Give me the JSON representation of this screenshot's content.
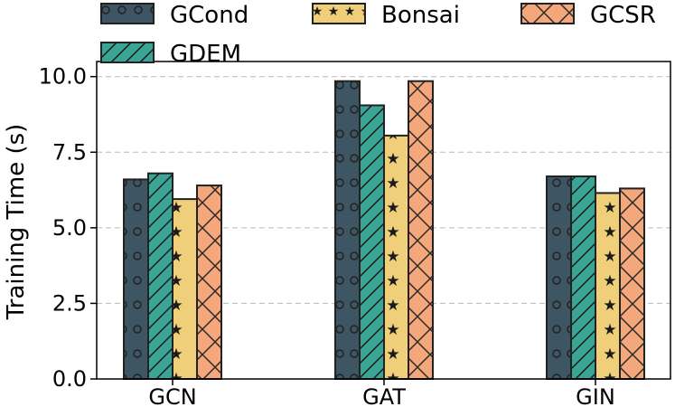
{
  "chart_data": {
    "type": "bar",
    "categories": [
      "GCN",
      "GAT",
      "GIN"
    ],
    "series": [
      {
        "name": "GCond",
        "values": [
          6.6,
          9.85,
          6.7
        ],
        "color": "#3e5663",
        "pattern": "circles"
      },
      {
        "name": "GDEM",
        "values": [
          6.8,
          9.05,
          6.7
        ],
        "color": "#3aa595",
        "pattern": "diagonal"
      },
      {
        "name": "Bonsai",
        "values": [
          5.95,
          8.05,
          6.15
        ],
        "color": "#f0cf7a",
        "pattern": "stars"
      },
      {
        "name": "GCSR",
        "values": [
          6.4,
          9.85,
          6.3
        ],
        "color": "#f4a77a",
        "pattern": "crosshatch"
      }
    ],
    "title": "",
    "xlabel": "",
    "ylabel": "Training Time (s)",
    "ylim": [
      0,
      10.5
    ],
    "yticks": [
      "0.0",
      "2.5",
      "5.0",
      "7.5",
      "10.0"
    ],
    "grid": "horizontal dashed",
    "legend_placement": "top"
  }
}
